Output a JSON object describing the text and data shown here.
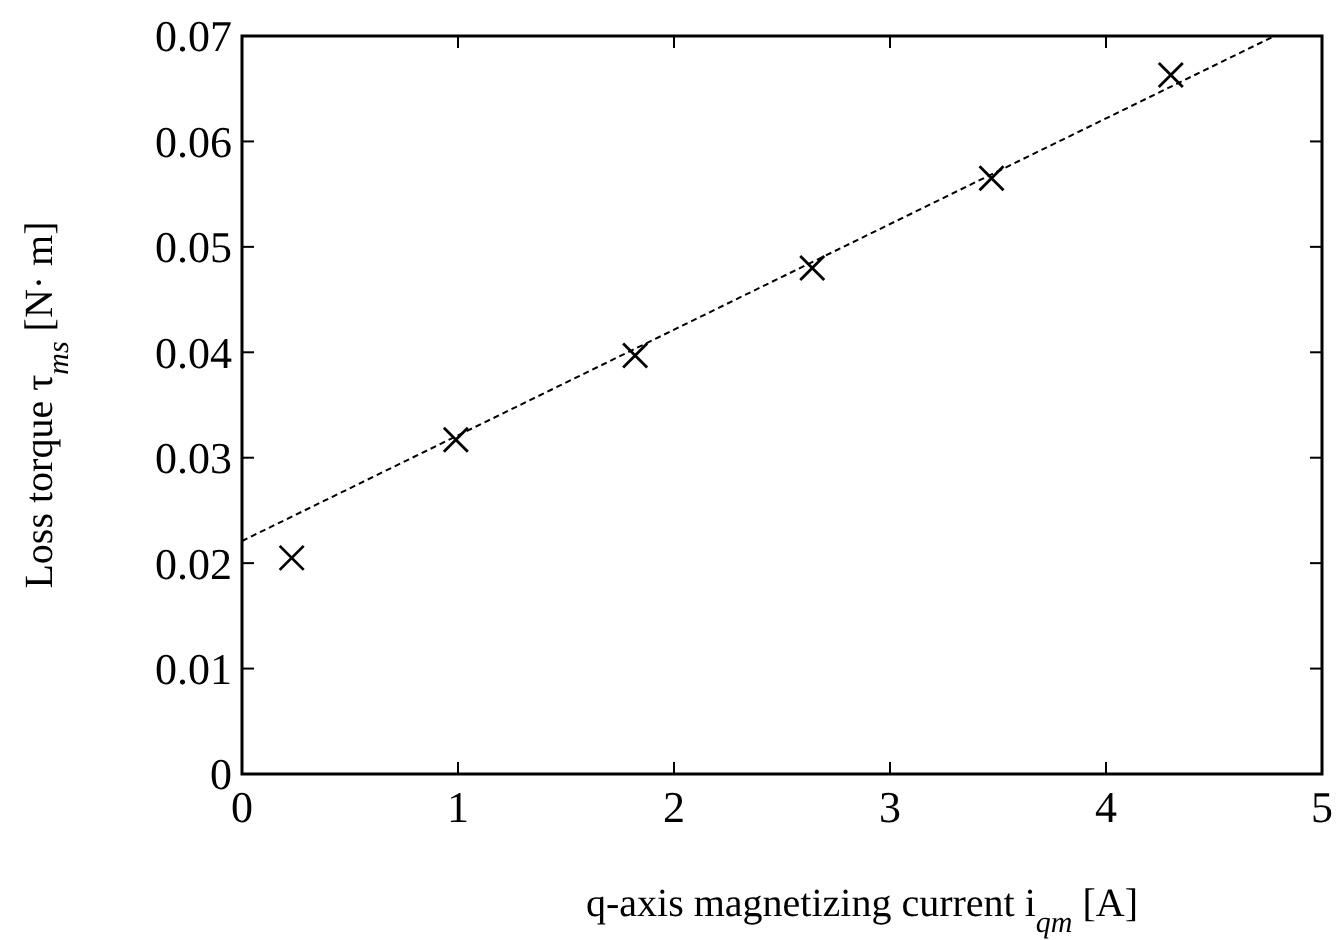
{
  "chart_data": {
    "type": "scatter",
    "xlabel": "q-axis magnetizing current  i$_{qm}$ [A]",
    "ylabel": "Loss torque  τ$_{ms}$  [N· m]",
    "xlim": [
      0,
      5
    ],
    "ylim": [
      0,
      0.07
    ],
    "xticks": [
      0,
      1,
      2,
      3,
      4,
      5
    ],
    "yticks": [
      0,
      0.01,
      0.02,
      0.03,
      0.04,
      0.05,
      0.06,
      0.07
    ],
    "grid": false,
    "series": [
      {
        "marker": "cross",
        "color": "#000000",
        "x": [
          0.23,
          0.99,
          1.82,
          2.64,
          3.47,
          4.3
        ],
        "values": [
          0.0205,
          0.0317,
          0.0397,
          0.048,
          0.0565,
          0.0663
        ]
      },
      {
        "type": "line",
        "line_style": "dashed",
        "marker": "none",
        "color": "#000000",
        "x": [
          0,
          4.78
        ],
        "values": [
          0.0221,
          0.07
        ]
      }
    ]
  }
}
